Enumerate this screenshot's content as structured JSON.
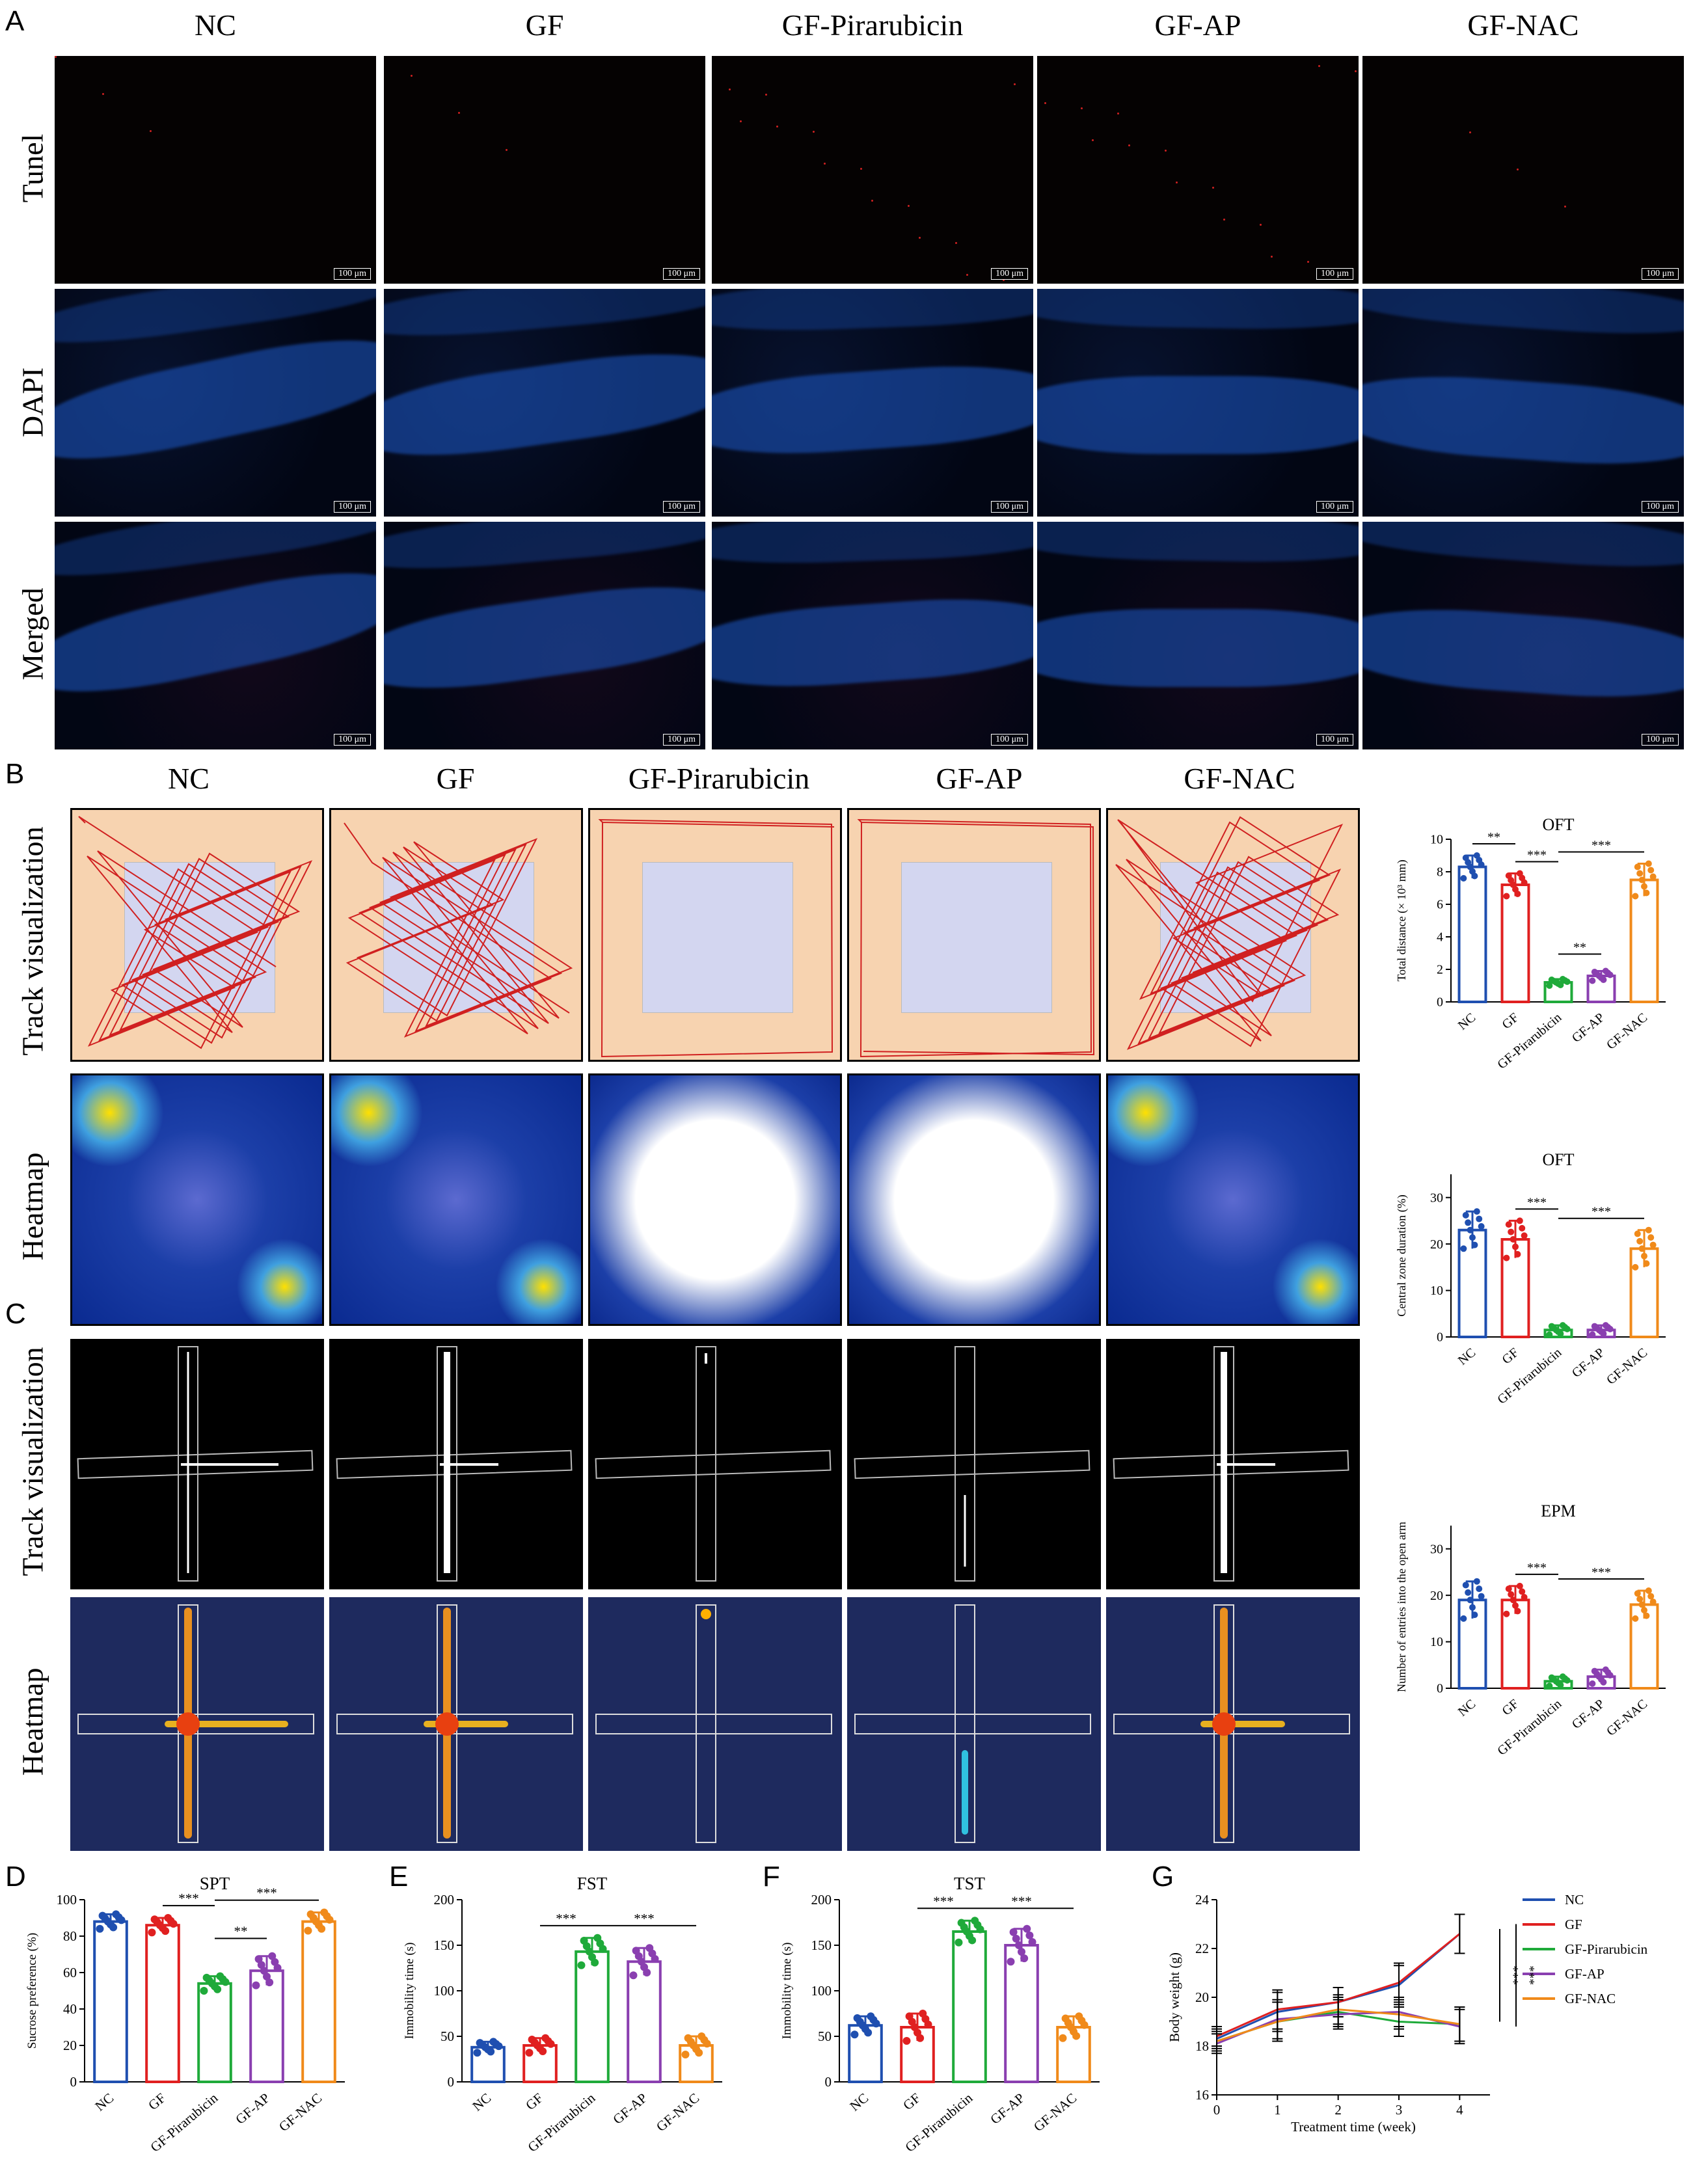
{
  "panel_letters": {
    "a": "A",
    "b": "B",
    "c": "C",
    "d": "D",
    "e": "E",
    "f": "F",
    "g": "G"
  },
  "groups": [
    "NC",
    "GF",
    "GF-Pirarubicin",
    "GF-AP",
    "GF-NAC"
  ],
  "panelA": {
    "rows": [
      "Tunel",
      "DAPI",
      "Merged"
    ],
    "scale": "100 μm"
  },
  "panelB": {
    "rows": [
      "Track visualization",
      "Heatmap"
    ]
  },
  "panelC": {
    "rows": [
      "Track visualization",
      "Heatmap"
    ]
  },
  "colors": {
    "NC": "#1f4fb0",
    "GF": "#e02020",
    "GF-Pirarubicin": "#1faa3a",
    "GF-AP": "#8a3fb0",
    "GF-NAC": "#f08a1a"
  },
  "chart_data": [
    {
      "id": "oft_dist",
      "type": "bar",
      "title": "OFT",
      "ylabel": "Total distance (× 10³ mm)",
      "categories": [
        "NC",
        "GF",
        "GF-Pirarubicin",
        "GF-AP",
        "GF-NAC"
      ],
      "values": [
        8.3,
        7.2,
        1.2,
        1.6,
        7.5
      ],
      "err": [
        0.7,
        0.7,
        0.2,
        0.3,
        1.0
      ],
      "ylim": [
        0,
        10
      ],
      "yticks": [
        0,
        2,
        4,
        6,
        8,
        10
      ],
      "sig": [
        {
          "a": 0,
          "b": 1,
          "label": "**"
        },
        {
          "a": 1,
          "b": 2,
          "label": "***"
        },
        {
          "a": 2,
          "b": 4,
          "label": "***"
        },
        {
          "a": 2,
          "b": 3,
          "label": "**"
        }
      ]
    },
    {
      "id": "oft_central",
      "type": "bar",
      "title": "OFT",
      "ylabel": "Central zone duration (%)",
      "categories": [
        "NC",
        "GF",
        "GF-Pirarubicin",
        "GF-AP",
        "GF-NAC"
      ],
      "values": [
        23,
        21,
        1.5,
        1.5,
        19
      ],
      "err": [
        4,
        4,
        1,
        1,
        4
      ],
      "ylim": [
        0,
        35
      ],
      "yticks": [
        0,
        10,
        20,
        30
      ],
      "sig": [
        {
          "a": 1,
          "b": 2,
          "label": "***"
        },
        {
          "a": 2,
          "b": 4,
          "label": "***"
        }
      ]
    },
    {
      "id": "epm",
      "type": "bar",
      "title": "EPM",
      "ylabel": "Number of entries into the open arm",
      "categories": [
        "NC",
        "GF",
        "GF-Pirarubicin",
        "GF-AP",
        "GF-NAC"
      ],
      "values": [
        19,
        19,
        1.5,
        2.5,
        18
      ],
      "err": [
        4,
        3,
        1,
        1.5,
        3
      ],
      "ylim": [
        0,
        35
      ],
      "yticks": [
        0,
        10,
        20,
        30
      ],
      "sig": [
        {
          "a": 1,
          "b": 2,
          "label": "***"
        },
        {
          "a": 2,
          "b": 4,
          "label": "***"
        }
      ]
    },
    {
      "id": "spt",
      "type": "bar",
      "title": "SPT",
      "ylabel": "Sucrose preference (%)",
      "categories": [
        "NC",
        "GF",
        "GF-Pirarubicin",
        "GF-AP",
        "GF-NAC"
      ],
      "values": [
        88,
        86,
        54,
        61,
        88
      ],
      "err": [
        4,
        4,
        4,
        8,
        5
      ],
      "ylim": [
        0,
        100
      ],
      "yticks": [
        0,
        20,
        40,
        60,
        80,
        100
      ],
      "sig": [
        {
          "a": 1,
          "b": 2,
          "label": "***"
        },
        {
          "a": 2,
          "b": 4,
          "label": "***"
        },
        {
          "a": 2,
          "b": 3,
          "label": "**"
        }
      ]
    },
    {
      "id": "fst",
      "type": "bar",
      "title": "FST",
      "ylabel": "Immobility time (s)",
      "categories": [
        "NC",
        "GF",
        "GF-Pirarubicin",
        "GF-AP",
        "GF-NAC"
      ],
      "values": [
        38,
        40,
        143,
        132,
        40
      ],
      "err": [
        6,
        8,
        15,
        15,
        10
      ],
      "ylim": [
        0,
        200
      ],
      "yticks": [
        0,
        50,
        100,
        150,
        200
      ],
      "sig": [
        {
          "a": 1,
          "b": 2,
          "label": "***"
        },
        {
          "a": 2,
          "b": 4,
          "label": "***"
        }
      ]
    },
    {
      "id": "tst",
      "type": "bar",
      "title": "TST",
      "ylabel": "Immobility time (s)",
      "categories": [
        "NC",
        "GF",
        "GF-Pirarubicin",
        "GF-AP",
        "GF-NAC"
      ],
      "values": [
        62,
        60,
        165,
        150,
        60
      ],
      "err": [
        10,
        15,
        12,
        18,
        12
      ],
      "ylim": [
        0,
        200
      ],
      "yticks": [
        0,
        50,
        100,
        150,
        200
      ],
      "sig": [
        {
          "a": 1,
          "b": 2,
          "label": "***"
        },
        {
          "a": 2,
          "b": 4,
          "label": "***"
        }
      ]
    },
    {
      "id": "weight",
      "type": "line",
      "title": "",
      "xlabel": "Treatment time (week)",
      "ylabel": "Body weight (g)",
      "x": [
        0,
        1,
        2,
        3,
        4
      ],
      "ylim": [
        16,
        24
      ],
      "yticks": [
        16,
        18,
        20,
        22,
        24
      ],
      "series": [
        {
          "name": "NC",
          "values": [
            18.3,
            19.4,
            19.8,
            20.5,
            22.6
          ],
          "err": [
            0.4,
            0.8,
            0.6,
            0.8,
            0.8
          ]
        },
        {
          "name": "GF",
          "values": [
            18.4,
            19.5,
            19.8,
            20.6,
            22.6
          ],
          "err": [
            0.4,
            0.8,
            0.6,
            0.8,
            0.8
          ]
        },
        {
          "name": "GF-Pirarubicin",
          "values": [
            18.2,
            19.0,
            19.4,
            19.0,
            18.9
          ],
          "err": [
            0.4,
            0.8,
            0.6,
            0.6,
            0.7
          ]
        },
        {
          "name": "GF-AP",
          "values": [
            18.1,
            19.1,
            19.3,
            19.4,
            18.8
          ],
          "err": [
            0.4,
            0.8,
            0.6,
            0.6,
            0.7
          ]
        },
        {
          "name": "GF-NAC",
          "values": [
            18.2,
            19.0,
            19.5,
            19.3,
            18.9
          ],
          "err": [
            0.4,
            0.8,
            0.6,
            0.6,
            0.7
          ]
        }
      ],
      "sig_labels": [
        "***",
        "***"
      ]
    }
  ]
}
